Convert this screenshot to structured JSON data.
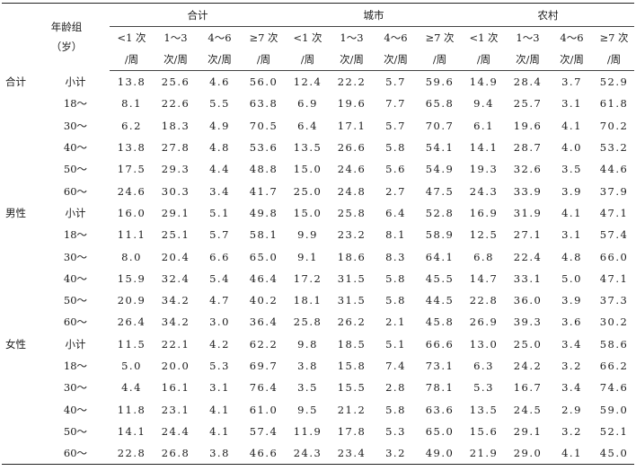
{
  "header": {
    "age_group_line1": "年龄组",
    "age_group_line2": "（岁）",
    "groups": [
      "合计",
      "城市",
      "农村"
    ],
    "freq_cols": [
      {
        "top": "<1 次",
        "bottom": "/周"
      },
      {
        "top": "1～3",
        "bottom": "次/周"
      },
      {
        "top": "4～6",
        "bottom": "次/周"
      },
      {
        "top": "≥7 次",
        "bottom": "/周"
      }
    ]
  },
  "sections": [
    {
      "sex": "合计",
      "rows": [
        {
          "age": "小计",
          "values": [
            "13.8",
            "25.6",
            "4.6",
            "56.0",
            "12.4",
            "22.2",
            "5.7",
            "59.6",
            "14.9",
            "28.4",
            "3.7",
            "52.9"
          ]
        },
        {
          "age": "18～",
          "values": [
            "8.1",
            "22.6",
            "5.5",
            "63.8",
            "6.9",
            "19.6",
            "7.7",
            "65.8",
            "9.4",
            "25.7",
            "3.1",
            "61.8"
          ]
        },
        {
          "age": "30～",
          "values": [
            "6.2",
            "18.3",
            "4.9",
            "70.5",
            "6.4",
            "17.1",
            "5.7",
            "70.7",
            "6.1",
            "19.6",
            "4.1",
            "70.2"
          ]
        },
        {
          "age": "40～",
          "values": [
            "13.8",
            "27.8",
            "4.8",
            "53.6",
            "13.5",
            "26.6",
            "5.8",
            "54.1",
            "14.1",
            "28.7",
            "4.0",
            "53.2"
          ]
        },
        {
          "age": "50～",
          "values": [
            "17.5",
            "29.3",
            "4.4",
            "48.8",
            "15.0",
            "24.6",
            "5.6",
            "54.9",
            "19.3",
            "32.6",
            "3.5",
            "44.6"
          ]
        },
        {
          "age": "60～",
          "values": [
            "24.6",
            "30.3",
            "3.4",
            "41.7",
            "25.0",
            "24.8",
            "2.7",
            "47.5",
            "24.3",
            "33.9",
            "3.9",
            "37.9"
          ]
        }
      ]
    },
    {
      "sex": "男性",
      "rows": [
        {
          "age": "小计",
          "values": [
            "16.0",
            "29.1",
            "5.1",
            "49.8",
            "15.0",
            "25.8",
            "6.4",
            "52.8",
            "16.9",
            "31.9",
            "4.1",
            "47.1"
          ]
        },
        {
          "age": "18～",
          "values": [
            "11.1",
            "25.1",
            "5.7",
            "58.1",
            "9.9",
            "23.2",
            "8.1",
            "58.9",
            "12.5",
            "27.1",
            "3.1",
            "57.4"
          ]
        },
        {
          "age": "30～",
          "values": [
            "8.0",
            "20.4",
            "6.6",
            "65.0",
            "9.1",
            "18.6",
            "8.3",
            "64.1",
            "6.8",
            "22.4",
            "4.8",
            "66.0"
          ]
        },
        {
          "age": "40～",
          "values": [
            "15.9",
            "32.4",
            "5.4",
            "46.4",
            "17.2",
            "31.5",
            "5.8",
            "45.5",
            "14.7",
            "33.1",
            "5.0",
            "47.1"
          ]
        },
        {
          "age": "50～",
          "values": [
            "20.9",
            "34.2",
            "4.7",
            "40.2",
            "18.1",
            "31.5",
            "5.8",
            "44.5",
            "22.8",
            "36.0",
            "3.9",
            "37.3"
          ]
        },
        {
          "age": "60～",
          "values": [
            "26.4",
            "34.2",
            "3.0",
            "36.4",
            "25.8",
            "26.2",
            "2.1",
            "45.8",
            "26.9",
            "39.3",
            "3.6",
            "30.2"
          ]
        }
      ]
    },
    {
      "sex": "女性",
      "rows": [
        {
          "age": "小计",
          "values": [
            "11.5",
            "22.1",
            "4.2",
            "62.2",
            "9.8",
            "18.5",
            "5.1",
            "66.6",
            "13.0",
            "25.0",
            "3.4",
            "58.6"
          ]
        },
        {
          "age": "18～",
          "values": [
            "5.0",
            "20.0",
            "5.3",
            "69.7",
            "3.8",
            "15.8",
            "7.4",
            "73.1",
            "6.3",
            "24.2",
            "3.2",
            "66.2"
          ]
        },
        {
          "age": "30～",
          "values": [
            "4.4",
            "16.1",
            "3.1",
            "76.4",
            "3.5",
            "15.5",
            "2.8",
            "78.1",
            "5.3",
            "16.7",
            "3.4",
            "74.6"
          ]
        },
        {
          "age": "40～",
          "values": [
            "11.8",
            "23.1",
            "4.1",
            "61.0",
            "9.5",
            "21.2",
            "5.8",
            "63.6",
            "13.5",
            "24.5",
            "2.9",
            "59.0"
          ]
        },
        {
          "age": "50～",
          "values": [
            "14.1",
            "24.4",
            "4.1",
            "57.4",
            "11.9",
            "17.8",
            "5.3",
            "65.0",
            "15.6",
            "29.1",
            "3.2",
            "52.1"
          ]
        },
        {
          "age": "60～",
          "values": [
            "22.8",
            "26.8",
            "3.8",
            "46.6",
            "24.3",
            "23.4",
            "3.2",
            "49.0",
            "21.9",
            "29.0",
            "4.1",
            "45.0"
          ]
        }
      ]
    }
  ]
}
